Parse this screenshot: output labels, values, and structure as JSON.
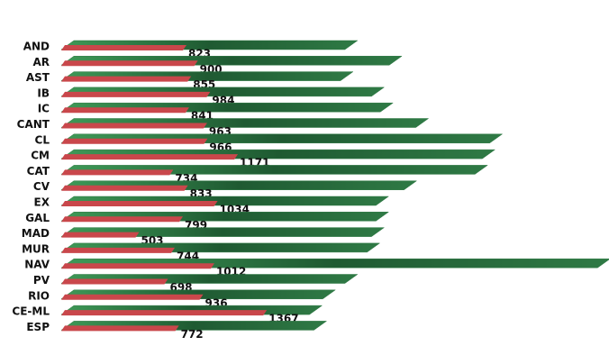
{
  "chart_data": {
    "type": "bar3d",
    "categories": [
      "AND",
      "AR",
      "AST",
      "IB",
      "IC",
      "CANT",
      "CL",
      "CM",
      "CAT",
      "CV",
      "EX",
      "GAL",
      "MAD",
      "MUR",
      "NAV",
      "PV",
      "RIO",
      "CE-ML",
      "ESP"
    ],
    "series": [
      {
        "color": "#c9474b",
        "values": [
          823,
          900,
          855,
          984,
          841,
          963,
          966,
          1171,
          734,
          833,
          1034,
          799,
          503,
          744,
          1012,
          698,
          936,
          1367,
          772
        ]
      },
      {
        "color": "#2f7a45",
        "values": [
          1920,
          2220,
          1890,
          2100,
          2160,
          2400,
          2900,
          2850,
          2800,
          2320,
          2130,
          2130,
          2100,
          2070,
          3630,
          1920,
          1770,
          1680,
          1710
        ]
      }
    ]
  }
}
